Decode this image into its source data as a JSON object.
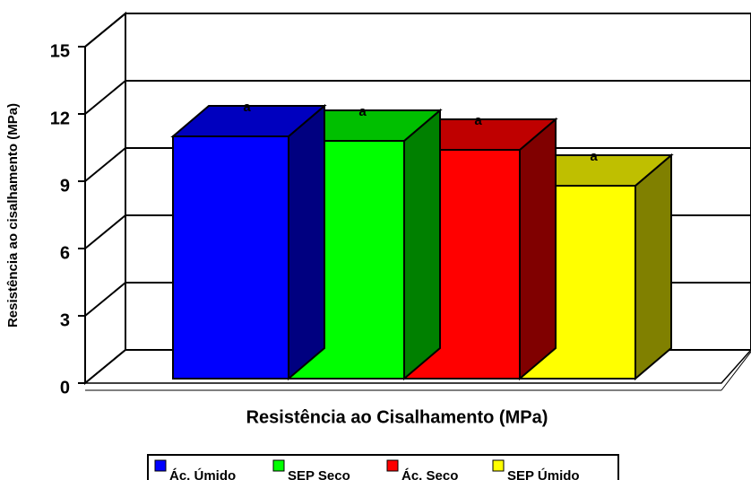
{
  "chart_data": {
    "type": "bar3d",
    "x_label": "Resistência ao Cisalhamento (MPa)",
    "y_label": "Resistência ao cisalhamento (MPa)",
    "categories": [
      null
    ],
    "series": [
      {
        "name": "Ác. Úmido",
        "color": "#0000ff",
        "values": [
          10.8
        ],
        "annotation": "a"
      },
      {
        "name": "SEP Seco",
        "color": "#00ff00",
        "values": [
          10.6
        ],
        "annotation": "a"
      },
      {
        "name": "Ác. Seco",
        "color": "#ff0000",
        "values": [
          10.2
        ],
        "annotation": "a"
      },
      {
        "name": "SEP Úmido",
        "color": "#ffff00",
        "values": [
          8.6
        ],
        "annotation": "a"
      }
    ],
    "ylim": [
      0,
      15
    ],
    "yticks": [
      0,
      3,
      6,
      9,
      12,
      15
    ],
    "grid": true,
    "legend": "bottom"
  }
}
